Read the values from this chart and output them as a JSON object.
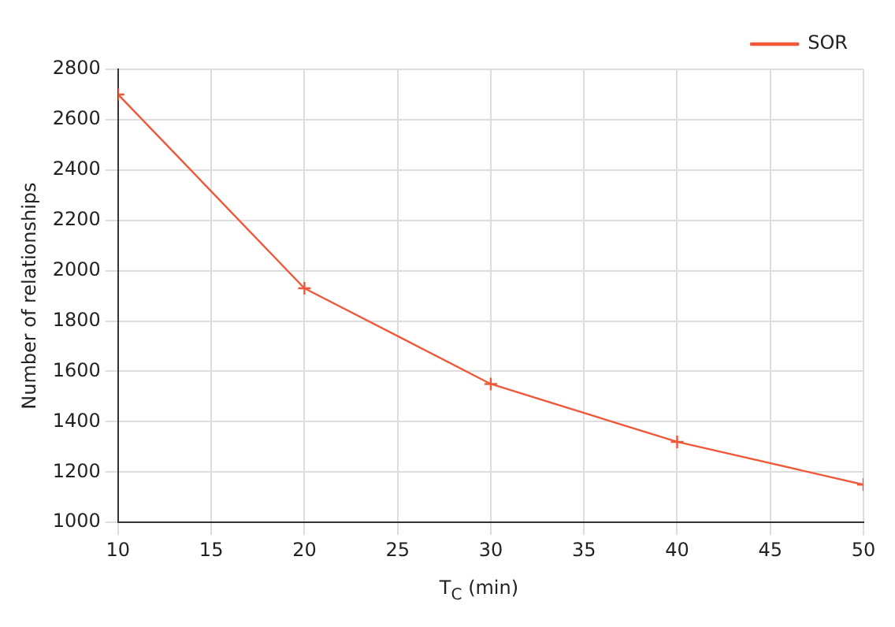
{
  "chart_data": {
    "type": "line",
    "xlabel": "T$_{C}$ (min)",
    "ylabel": "Number of relationships",
    "x": [
      10,
      20,
      30,
      40,
      50
    ],
    "series": [
      {
        "name": "SOR",
        "color": "#f0583a",
        "values": [
          2700,
          1930,
          1550,
          1320,
          1150
        ]
      }
    ],
    "xlim": [
      10,
      50
    ],
    "xticks": [
      10,
      15,
      20,
      25,
      30,
      35,
      40,
      45,
      50
    ],
    "ylim": [
      1000,
      2800
    ],
    "yticks": [
      1000,
      1200,
      1400,
      1600,
      1800,
      2000,
      2200,
      2400,
      2600,
      2800
    ],
    "grid": true,
    "legend": "top right",
    "marker": "cross",
    "line_style": "solid"
  }
}
